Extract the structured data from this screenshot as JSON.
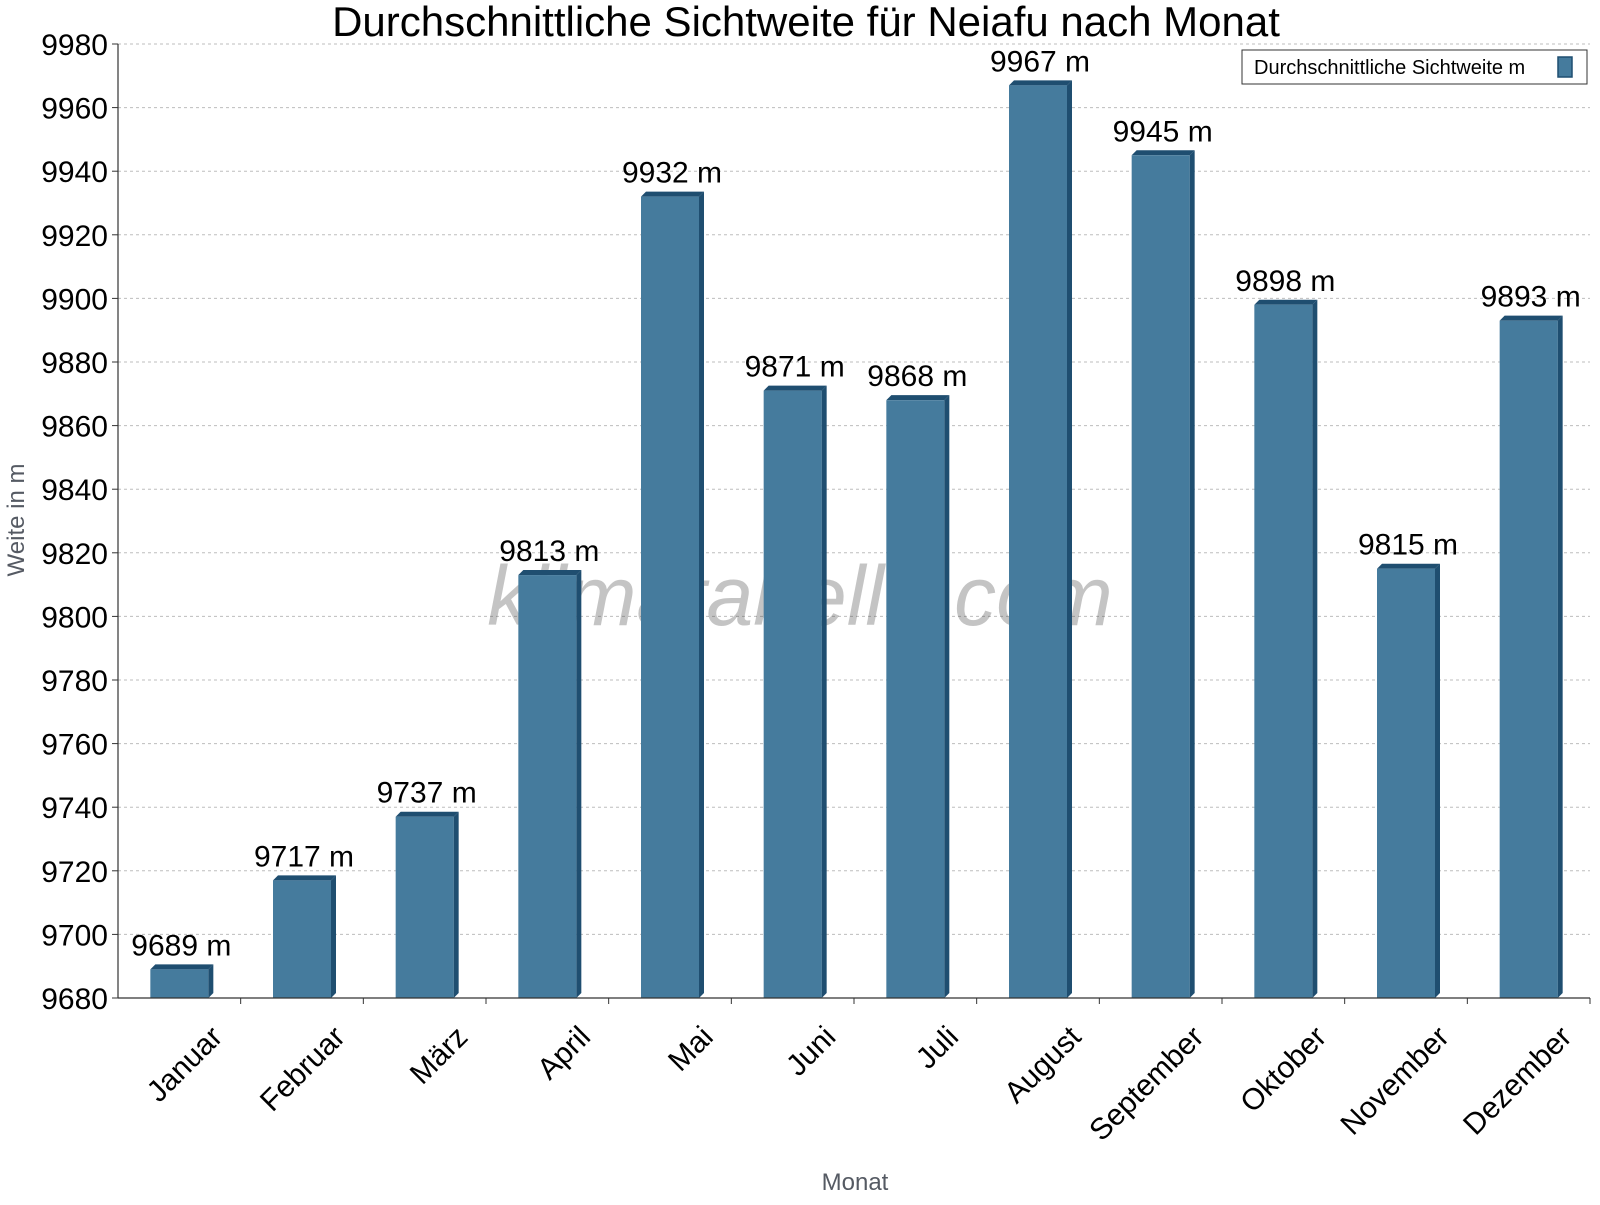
{
  "chart_data": {
    "type": "bar",
    "title": "Durchschnittliche Sichtweite für Neiafu nach Monat",
    "xlabel": "Monat",
    "ylabel": "Weite in m",
    "categories": [
      "Januar",
      "Februar",
      "März",
      "April",
      "Mai",
      "Juni",
      "Juli",
      "August",
      "September",
      "Oktober",
      "November",
      "Dezember"
    ],
    "series": [
      {
        "name": "Durchschnittliche Sichtweite m",
        "values": [
          9689,
          9717,
          9737,
          9813,
          9932,
          9871,
          9868,
          9967,
          9945,
          9898,
          9815,
          9893
        ],
        "color": "#457b9d",
        "edge_color": "#1f4e70"
      }
    ],
    "data_labels": [
      "9689 m",
      "9717 m",
      "9737 m",
      "9813 m",
      "9932 m",
      "9871 m",
      "9868 m",
      "9967 m",
      "9945 m",
      "9898 m",
      "9815 m",
      "9893 m"
    ],
    "ylim": [
      9680,
      9980
    ],
    "yticks": [
      9680,
      9700,
      9720,
      9740,
      9760,
      9780,
      9800,
      9820,
      9840,
      9860,
      9880,
      9900,
      9920,
      9940,
      9960,
      9980
    ],
    "grid": true,
    "legend_position": "top-right",
    "watermark": "klimatabelle.com"
  }
}
